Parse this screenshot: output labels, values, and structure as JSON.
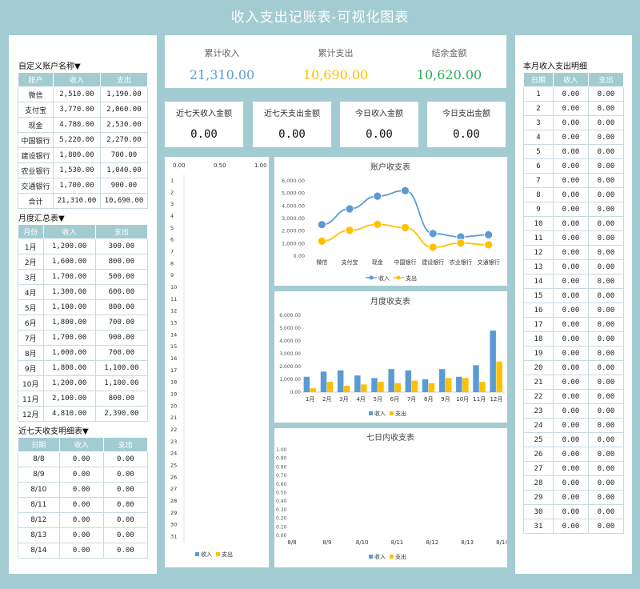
{
  "title": "收入支出记账表-可视化图表",
  "accounts": {
    "heading": "自定义账户名称▼",
    "headers": [
      "账户",
      "收入",
      "支出"
    ],
    "rows": [
      [
        "微信",
        "2,510.00",
        "1,190.00"
      ],
      [
        "支付宝",
        "3,770.00",
        "2,060.00"
      ],
      [
        "现金",
        "4,780.00",
        "2,530.00"
      ],
      [
        "中国银行",
        "5,220.00",
        "2,270.00"
      ],
      [
        "建设银行",
        "1,800.00",
        "700.00"
      ],
      [
        "农业银行",
        "1,530.00",
        "1,040.00"
      ],
      [
        "交通银行",
        "1,700.00",
        "900.00"
      ],
      [
        "合计",
        "21,310.00",
        "10,690.00"
      ]
    ]
  },
  "monthly": {
    "heading": "月度汇总表▼",
    "headers": [
      "月份",
      "收入",
      "支出"
    ],
    "rows": [
      [
        "1月",
        "1,200.00",
        "300.00"
      ],
      [
        "2月",
        "1,600.00",
        "800.00"
      ],
      [
        "3月",
        "1,700.00",
        "500.00"
      ],
      [
        "4月",
        "1,300.00",
        "600.00"
      ],
      [
        "5月",
        "1,100.00",
        "800.00"
      ],
      [
        "6月",
        "1,800.00",
        "700.00"
      ],
      [
        "7月",
        "1,700.00",
        "900.00"
      ],
      [
        "8月",
        "1,000.00",
        "700.00"
      ],
      [
        "9月",
        "1,800.00",
        "1,100.00"
      ],
      [
        "10月",
        "1,200.00",
        "1,100.00"
      ],
      [
        "11月",
        "2,100.00",
        "800.00"
      ],
      [
        "12月",
        "4,810.00",
        "2,390.00"
      ]
    ]
  },
  "week": {
    "heading": "近七天收支明细表▼",
    "headers": [
      "日期",
      "收入",
      "支出"
    ],
    "rows": [
      [
        "8/8",
        "0.00",
        "0.00"
      ],
      [
        "8/9",
        "0.00",
        "0.00"
      ],
      [
        "8/10",
        "0.00",
        "0.00"
      ],
      [
        "8/11",
        "0.00",
        "0.00"
      ],
      [
        "8/12",
        "0.00",
        "0.00"
      ],
      [
        "8/13",
        "0.00",
        "0.00"
      ],
      [
        "8/14",
        "0.00",
        "0.00"
      ]
    ]
  },
  "kpi": {
    "income_label": "累计收入",
    "income": "21,310.00",
    "expense_label": "累计支出",
    "expense": "10,690.00",
    "balance_label": "结余金额",
    "balance": "10,620.00",
    "income_color": "#5b9bd5",
    "expense_color": "#ffc000",
    "balance_color": "#2eab5a"
  },
  "kpi2": [
    {
      "label": "近七天收入金额",
      "value": "0.00"
    },
    {
      "label": "近七天支出金额",
      "value": "0.00"
    },
    {
      "label": "今日收入金额",
      "value": "0.00"
    },
    {
      "label": "今日支出金额",
      "value": "0.00"
    }
  ],
  "daily": {
    "heading": "本月收入支出明细",
    "headers": [
      "日期",
      "收入",
      "支出"
    ],
    "days": [
      "1",
      "2",
      "3",
      "4",
      "5",
      "6",
      "7",
      "8",
      "9",
      "10",
      "11",
      "12",
      "13",
      "14",
      "15",
      "16",
      "17",
      "18",
      "19",
      "20",
      "21",
      "22",
      "23",
      "24",
      "25",
      "26",
      "27",
      "28",
      "29",
      "30",
      "31"
    ],
    "zero": "0.00"
  },
  "legend": {
    "income": "收入",
    "expense": "支出"
  },
  "chart_data": [
    {
      "type": "bar",
      "orientation": "horizontal",
      "title": "",
      "x_ticks": [
        "0.00",
        "0.50",
        "1.00"
      ],
      "categories": [
        "1",
        "2",
        "3",
        "4",
        "5",
        "6",
        "7",
        "8",
        "9",
        "10",
        "11",
        "12",
        "13",
        "14",
        "15",
        "16",
        "17",
        "18",
        "19",
        "20",
        "21",
        "22",
        "23",
        "24",
        "25",
        "26",
        "27",
        "28",
        "29",
        "30",
        "31"
      ],
      "series": [
        {
          "name": "收入",
          "values": [
            0,
            0,
            0,
            0,
            0,
            0,
            0,
            0,
            0,
            0,
            0,
            0,
            0,
            0,
            0,
            0,
            0,
            0,
            0,
            0,
            0,
            0,
            0,
            0,
            0,
            0,
            0,
            0,
            0,
            0,
            0
          ]
        },
        {
          "name": "支出",
          "values": [
            0,
            0,
            0,
            0,
            0,
            0,
            0,
            0,
            0,
            0,
            0,
            0,
            0,
            0,
            0,
            0,
            0,
            0,
            0,
            0,
            0,
            0,
            0,
            0,
            0,
            0,
            0,
            0,
            0,
            0,
            0
          ]
        }
      ]
    },
    {
      "type": "line",
      "title": "账户收支表",
      "categories": [
        "微信",
        "支付宝",
        "现金",
        "中国银行",
        "建设银行",
        "农业银行",
        "交通银行"
      ],
      "y_ticks": [
        "0.00",
        "1,000.00",
        "2,000.00",
        "3,000.00",
        "4,000.00",
        "5,000.00",
        "6,000.00"
      ],
      "ylim": [
        0,
        6000
      ],
      "series": [
        {
          "name": "收入",
          "values": [
            2510,
            3770,
            4780,
            5220,
            1800,
            1530,
            1700
          ]
        },
        {
          "name": "支出",
          "values": [
            1190,
            2060,
            2530,
            2270,
            700,
            1040,
            900
          ]
        }
      ],
      "legend": "bottom"
    },
    {
      "type": "bar",
      "title": "月度收支表",
      "categories": [
        "1月",
        "2月",
        "3月",
        "4月",
        "5月",
        "6月",
        "7月",
        "8月",
        "9月",
        "10月",
        "11月",
        "12月"
      ],
      "y_ticks": [
        "0.00",
        "1,000.00",
        "2,000.00",
        "3,000.00",
        "4,000.00",
        "5,000.00",
        "6,000.00"
      ],
      "ylim": [
        0,
        6000
      ],
      "series": [
        {
          "name": "收入",
          "values": [
            1200,
            1600,
            1700,
            1300,
            1100,
            1800,
            1700,
            1000,
            1800,
            1200,
            2100,
            4810
          ]
        },
        {
          "name": "支出",
          "values": [
            300,
            800,
            500,
            600,
            800,
            700,
            900,
            700,
            1100,
            1100,
            800,
            2390
          ]
        }
      ],
      "legend": "bottom"
    },
    {
      "type": "bar",
      "title": "七日内收支表",
      "categories": [
        "8/8",
        "8/9",
        "8/10",
        "8/11",
        "8/12",
        "8/13",
        "8/14"
      ],
      "y_ticks": [
        "0.00",
        "0.10",
        "0.20",
        "0.30",
        "0.40",
        "0.50",
        "0.60",
        "0.70",
        "0.80",
        "0.90",
        "1.00"
      ],
      "ylim": [
        0,
        1
      ],
      "series": [
        {
          "name": "收入",
          "values": [
            0,
            0,
            0,
            0,
            0,
            0,
            0
          ]
        },
        {
          "name": "支出",
          "values": [
            0,
            0,
            0,
            0,
            0,
            0,
            0
          ]
        }
      ],
      "legend": "bottom"
    }
  ]
}
